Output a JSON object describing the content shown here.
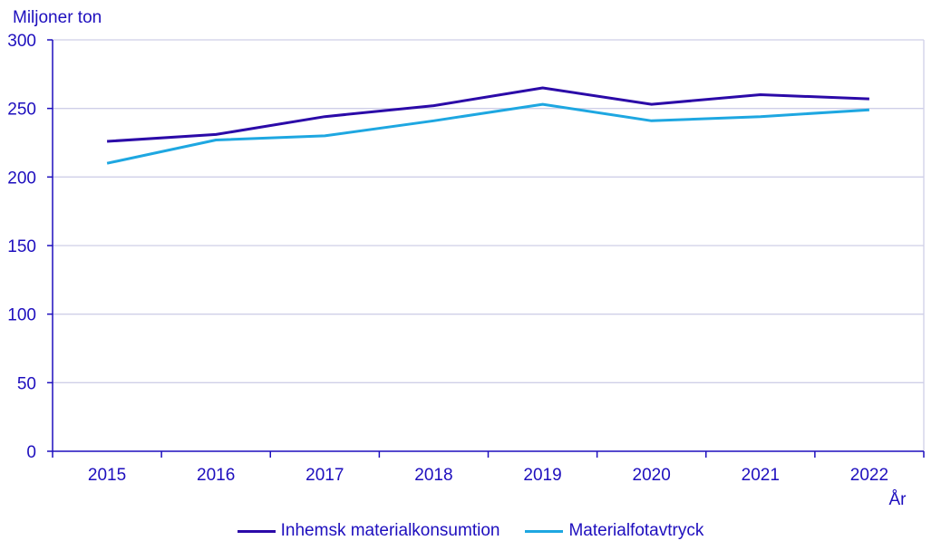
{
  "chart_data": {
    "type": "line",
    "title": "",
    "ylabel": "Miljoner ton",
    "xlabel": "År",
    "categories": [
      "2015",
      "2016",
      "2017",
      "2018",
      "2019",
      "2020",
      "2021",
      "2022"
    ],
    "ylim": [
      0,
      300
    ],
    "yticks": [
      0,
      50,
      100,
      150,
      200,
      250,
      300
    ],
    "ytick_labels": [
      "0",
      "50",
      "100",
      "150",
      "200",
      "250",
      "300"
    ],
    "grid": true,
    "legend_position": "bottom",
    "series": [
      {
        "name": "Inhemsk materialkonsumtion",
        "color": "#2b0aa8",
        "values": [
          226,
          231,
          244,
          252,
          265,
          253,
          260,
          257
        ]
      },
      {
        "name": "Materialfotavtryck",
        "color": "#1ea7e1",
        "values": [
          210,
          227,
          230,
          241,
          253,
          241,
          244,
          249
        ]
      }
    ]
  },
  "colors": {
    "axis": "#1e0fbe",
    "grid": "#cfcfe8"
  }
}
